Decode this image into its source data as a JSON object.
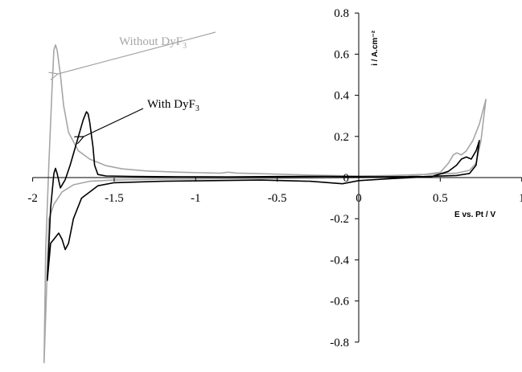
{
  "chart_data": {
    "type": "line",
    "title": "",
    "xlabel": "E vs. Pt / V",
    "ylabel": "i / A.cm⁻²",
    "xlim": [
      -2,
      1
    ],
    "ylim": [
      -0.8,
      0.8
    ],
    "x_ticks": [
      -2,
      -1.5,
      -1,
      -0.5,
      0,
      0.5,
      1
    ],
    "x_tick_labels": [
      "-2",
      "-1.5",
      "-1",
      "-0.5",
      "0",
      "0.5",
      "1"
    ],
    "y_ticks": [
      0.8,
      0.6,
      0.4,
      0.2,
      0,
      -0.2,
      -0.4,
      -0.6,
      -0.8
    ],
    "y_tick_labels": [
      "0.8",
      "0.6",
      "0.4",
      "0.2",
      "0",
      "-0.2",
      "-0.4",
      "-0.6",
      "-0.8"
    ],
    "grid": false,
    "legend": "none",
    "annotations": [
      {
        "text": "Without DyF",
        "sub": "3",
        "color": "#a6a6a6",
        "target_series": 0,
        "target_point": [
          -1.85,
          0.62
        ],
        "text_anchor_point": [
          -1.38,
          0.78
        ]
      },
      {
        "text": "With DyF",
        "sub": "3",
        "color": "#000000",
        "target_series": 1,
        "target_point": [
          -1.66,
          0.2
        ],
        "text_anchor_point": [
          -1.4,
          0.35
        ]
      }
    ],
    "series": [
      {
        "color": "#a6a6a6",
        "points": [
          [
            -0.55,
            0.018
          ],
          [
            -0.75,
            0.022
          ],
          [
            -0.8,
            0.026
          ],
          [
            -0.85,
            0.021
          ],
          [
            -1.1,
            0.026
          ],
          [
            -1.3,
            0.032
          ],
          [
            -1.45,
            0.042
          ],
          [
            -1.55,
            0.058
          ],
          [
            -1.65,
            0.09
          ],
          [
            -1.72,
            0.13
          ],
          [
            -1.78,
            0.22
          ],
          [
            -1.81,
            0.35
          ],
          [
            -1.83,
            0.5
          ],
          [
            -1.85,
            0.62
          ],
          [
            -1.86,
            0.645
          ],
          [
            -1.87,
            0.62
          ],
          [
            -1.88,
            0.45
          ],
          [
            -1.9,
            0.08
          ],
          [
            -1.92,
            -0.35
          ],
          [
            -1.93,
            -0.9
          ],
          [
            -1.9,
            -0.2
          ],
          [
            -1.87,
            -0.13
          ],
          [
            -1.82,
            -0.07
          ],
          [
            -1.75,
            -0.035
          ],
          [
            -1.65,
            -0.018
          ],
          [
            -1.5,
            -0.012
          ],
          [
            -1.2,
            -0.008
          ],
          [
            -0.8,
            -0.005
          ],
          [
            -0.4,
            -0.003
          ],
          [
            0,
            0
          ],
          [
            0.3,
            0.005
          ],
          [
            0.5,
            0.025
          ],
          [
            0.55,
            0.07
          ],
          [
            0.58,
            0.11
          ],
          [
            0.6,
            0.12
          ],
          [
            0.63,
            0.11
          ],
          [
            0.66,
            0.13
          ],
          [
            0.7,
            0.18
          ],
          [
            0.74,
            0.26
          ],
          [
            0.78,
            0.38
          ],
          [
            0.75,
            0.18
          ],
          [
            0.72,
            0.07
          ],
          [
            0.68,
            0.035
          ],
          [
            0.6,
            0.022
          ],
          [
            0.5,
            0.018
          ],
          [
            0.2,
            0.01
          ],
          [
            0,
            0.008
          ],
          [
            -0.3,
            0.012
          ],
          [
            -0.55,
            0.018
          ]
        ]
      },
      {
        "color": "#000000",
        "points": [
          [
            -0.5,
            0.005
          ],
          [
            -0.8,
            0.003
          ],
          [
            -1.1,
            0.004
          ],
          [
            -1.4,
            0.006
          ],
          [
            -1.55,
            0.008
          ],
          [
            -1.6,
            0.015
          ],
          [
            -1.62,
            0.06
          ],
          [
            -1.63,
            0.15
          ],
          [
            -1.65,
            0.27
          ],
          [
            -1.66,
            0.31
          ],
          [
            -1.67,
            0.32
          ],
          [
            -1.69,
            0.28
          ],
          [
            -1.73,
            0.17
          ],
          [
            -1.77,
            0.06
          ],
          [
            -1.8,
            -0.01
          ],
          [
            -1.83,
            -0.05
          ],
          [
            -1.85,
            0.02
          ],
          [
            -1.86,
            0.045
          ],
          [
            -1.87,
            0.02
          ],
          [
            -1.89,
            -0.15
          ],
          [
            -1.91,
            -0.5
          ],
          [
            -1.89,
            -0.32
          ],
          [
            -1.87,
            -0.3
          ],
          [
            -1.84,
            -0.27
          ],
          [
            -1.82,
            -0.3
          ],
          [
            -1.8,
            -0.35
          ],
          [
            -1.78,
            -0.32
          ],
          [
            -1.75,
            -0.2
          ],
          [
            -1.7,
            -0.1
          ],
          [
            -1.6,
            -0.04
          ],
          [
            -1.5,
            -0.025
          ],
          [
            -1.2,
            -0.018
          ],
          [
            -0.9,
            -0.015
          ],
          [
            -0.6,
            -0.012
          ],
          [
            -0.3,
            -0.018
          ],
          [
            -0.1,
            -0.03
          ],
          [
            0,
            -0.015
          ],
          [
            0.2,
            -0.005
          ],
          [
            0.45,
            0.005
          ],
          [
            0.55,
            0.03
          ],
          [
            0.6,
            0.06
          ],
          [
            0.63,
            0.09
          ],
          [
            0.66,
            0.1
          ],
          [
            0.69,
            0.09
          ],
          [
            0.72,
            0.13
          ],
          [
            0.74,
            0.18
          ],
          [
            0.72,
            0.06
          ],
          [
            0.68,
            0.02
          ],
          [
            0.6,
            0.01
          ],
          [
            0.4,
            0.005
          ],
          [
            0.1,
            0.004
          ],
          [
            -0.2,
            0.006
          ],
          [
            -0.5,
            0.005
          ]
        ]
      }
    ]
  }
}
